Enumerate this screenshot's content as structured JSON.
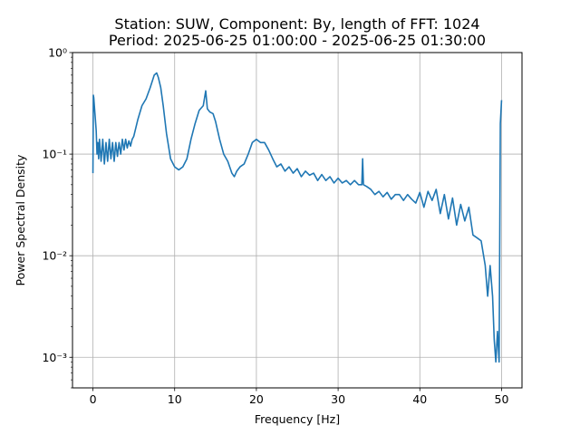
{
  "chart_data": {
    "type": "line",
    "title_line1": "Station: SUW, Component: By, length of FFT: 1024",
    "title_line2": "Period: 2025-06-25 01:00:00 - 2025-06-25 01:30:00",
    "xlabel": "Frequency [Hz]",
    "ylabel": "Power Spectral Density",
    "xlim": [
      -2.5,
      52.5
    ],
    "ylim": [
      0.0005,
      1
    ],
    "yscale": "log",
    "grid": true,
    "xticks": [
      0,
      10,
      20,
      30,
      40,
      50
    ],
    "xtick_labels": [
      "0",
      "10",
      "20",
      "30",
      "40",
      "50"
    ],
    "yticks": [
      0.001,
      0.01,
      0.1,
      1
    ],
    "ytick_labels": [
      "10⁻³",
      "10⁻²",
      "10⁻¹",
      "10⁰"
    ],
    "series": [
      {
        "color": "#1f77b4",
        "x": [
          0,
          0.05,
          0.1,
          0.2,
          0.3,
          0.4,
          0.5,
          0.6,
          0.7,
          0.8,
          1.0,
          1.2,
          1.4,
          1.6,
          1.8,
          2.0,
          2.2,
          2.4,
          2.6,
          2.8,
          3.0,
          3.2,
          3.4,
          3.6,
          3.8,
          4.0,
          4.2,
          4.4,
          4.6,
          4.8,
          5.0,
          5.5,
          6.0,
          6.5,
          7.0,
          7.5,
          7.8,
          8.0,
          8.3,
          8.6,
          9.0,
          9.5,
          10.0,
          10.5,
          11.0,
          11.5,
          12.0,
          12.5,
          13.0,
          13.5,
          13.8,
          14.0,
          14.3,
          14.7,
          15.0,
          15.5,
          16.0,
          16.5,
          17.0,
          17.3,
          17.6,
          18.0,
          18.5,
          19.0,
          19.5,
          20.0,
          20.5,
          21.0,
          21.5,
          22.0,
          22.5,
          23.0,
          23.5,
          24.0,
          24.5,
          25.0,
          25.5,
          26.0,
          26.5,
          27.0,
          27.5,
          28.0,
          28.5,
          29.0,
          29.5,
          30.0,
          30.5,
          31.0,
          31.5,
          32.0,
          32.5,
          32.9,
          33.0,
          33.1,
          33.5,
          34.0,
          34.5,
          35.0,
          35.5,
          36.0,
          36.5,
          37.0,
          37.5,
          38.0,
          38.5,
          39.0,
          39.5,
          40.0,
          40.5,
          41.0,
          41.5,
          42.0,
          42.5,
          43.0,
          43.5,
          44.0,
          44.5,
          45.0,
          45.5,
          46.0,
          46.5,
          47.0,
          47.5,
          48.0,
          48.3,
          48.6,
          48.9,
          49.1,
          49.3,
          49.5,
          49.7,
          49.85,
          50.0
        ],
        "y": [
          0.065,
          0.38,
          0.36,
          0.28,
          0.22,
          0.17,
          0.1,
          0.13,
          0.09,
          0.14,
          0.085,
          0.14,
          0.08,
          0.13,
          0.085,
          0.14,
          0.09,
          0.13,
          0.085,
          0.13,
          0.095,
          0.13,
          0.1,
          0.14,
          0.11,
          0.14,
          0.115,
          0.135,
          0.12,
          0.14,
          0.15,
          0.22,
          0.3,
          0.35,
          0.45,
          0.6,
          0.63,
          0.57,
          0.45,
          0.3,
          0.16,
          0.09,
          0.075,
          0.07,
          0.075,
          0.09,
          0.14,
          0.2,
          0.27,
          0.3,
          0.42,
          0.28,
          0.26,
          0.25,
          0.21,
          0.14,
          0.1,
          0.085,
          0.065,
          0.06,
          0.068,
          0.075,
          0.08,
          0.1,
          0.13,
          0.14,
          0.13,
          0.13,
          0.11,
          0.09,
          0.075,
          0.08,
          0.068,
          0.075,
          0.065,
          0.072,
          0.06,
          0.068,
          0.062,
          0.065,
          0.055,
          0.063,
          0.055,
          0.06,
          0.052,
          0.058,
          0.052,
          0.055,
          0.05,
          0.055,
          0.05,
          0.05,
          0.09,
          0.05,
          0.048,
          0.045,
          0.04,
          0.043,
          0.038,
          0.042,
          0.036,
          0.04,
          0.04,
          0.035,
          0.04,
          0.036,
          0.033,
          0.042,
          0.03,
          0.043,
          0.035,
          0.045,
          0.026,
          0.04,
          0.023,
          0.037,
          0.02,
          0.032,
          0.022,
          0.03,
          0.016,
          0.015,
          0.014,
          0.008,
          0.004,
          0.008,
          0.004,
          0.0015,
          0.0009,
          0.0018,
          0.0009,
          0.2,
          0.34
        ]
      }
    ]
  }
}
